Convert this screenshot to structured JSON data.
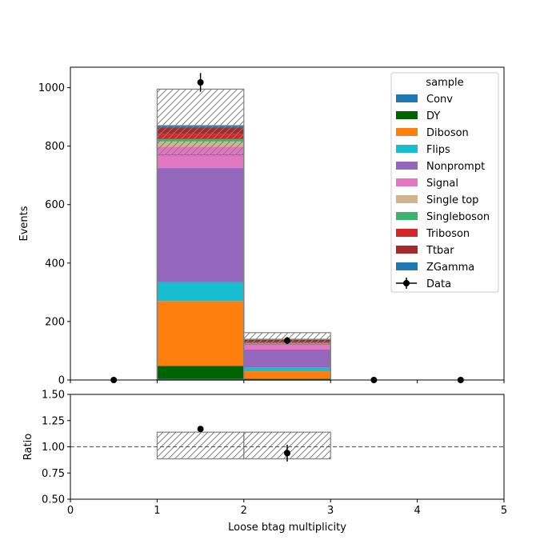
{
  "colors": {
    "Conv": "#1f77b4",
    "DY": "#006400",
    "Diboson": "#ff7f0e",
    "Flips": "#17becf",
    "Nonprompt": "#9467bd",
    "Signal": "#e377c2",
    "Single top": "#d2b48c",
    "Singleboson": "#3cb371",
    "Triboson": "#d62728",
    "Ttbar": "#a52a2a",
    "ZGamma": "#1f77b4",
    "Data": "#000000",
    "uncertainty_hatch": "#808080"
  },
  "chart_data": [
    {
      "type": "bar",
      "stacked": true,
      "xlabel": "",
      "ylabel": "Events",
      "xlim": [
        0,
        5
      ],
      "ylim": [
        0,
        1070
      ],
      "yticks": [
        0,
        200,
        400,
        600,
        800,
        1000
      ],
      "bin_edges": [
        0,
        1,
        2,
        3,
        4,
        5
      ],
      "legend": {
        "title": "sample",
        "placement": "top-right"
      },
      "series": [
        {
          "name": "Conv",
          "values": [
            0,
            4,
            1,
            0,
            0
          ]
        },
        {
          "name": "DY",
          "values": [
            0,
            44,
            3,
            0,
            0
          ]
        },
        {
          "name": "Diboson",
          "values": [
            0,
            222,
            26,
            0,
            0
          ]
        },
        {
          "name": "Flips",
          "values": [
            0,
            65,
            12,
            0,
            0
          ]
        },
        {
          "name": "Nonprompt",
          "values": [
            0,
            390,
            62,
            0,
            0
          ]
        },
        {
          "name": "Signal",
          "values": [
            0,
            73,
            18,
            0,
            0
          ]
        },
        {
          "name": "Single top",
          "values": [
            0,
            18,
            4,
            0,
            0
          ]
        },
        {
          "name": "Singleboson",
          "values": [
            0,
            8,
            1,
            0,
            0
          ]
        },
        {
          "name": "Triboson",
          "values": [
            0,
            18,
            4,
            0,
            0
          ]
        },
        {
          "name": "Ttbar",
          "values": [
            0,
            20,
            6,
            0,
            0
          ]
        },
        {
          "name": "ZGamma",
          "values": [
            0,
            8,
            2,
            0,
            0
          ]
        }
      ],
      "uncertainty_band": {
        "low": [
          0,
          770,
          123,
          0,
          0
        ],
        "high": [
          0,
          995,
          162,
          0,
          0
        ]
      },
      "data_points": {
        "name": "Data",
        "x": [
          0.5,
          1.5,
          2.5,
          3.5,
          4.5
        ],
        "y": [
          0,
          1018,
          135,
          0,
          0
        ],
        "yerr": [
          0,
          32,
          12,
          0,
          0
        ]
      }
    },
    {
      "type": "scatter",
      "xlabel": "Loose btag multiplicity",
      "ylabel": "Ratio",
      "xlim": [
        0,
        5
      ],
      "ylim": [
        0.5,
        1.5
      ],
      "xticks": [
        0,
        1,
        2,
        3,
        4,
        5
      ],
      "yticks": [
        "0.50",
        "0.75",
        "1.00",
        "1.25",
        "1.50"
      ],
      "reference_line": 1.0,
      "uncertainty_band": {
        "bin_edges": [
          0,
          1,
          2,
          3,
          4,
          5
        ],
        "low": [
          null,
          0.885,
          0.885,
          null,
          null
        ],
        "high": [
          null,
          1.14,
          1.14,
          null,
          null
        ]
      },
      "points": {
        "x": [
          1.5,
          2.5
        ],
        "y": [
          1.17,
          0.94
        ],
        "yerr": [
          0.02,
          0.08
        ]
      }
    }
  ]
}
